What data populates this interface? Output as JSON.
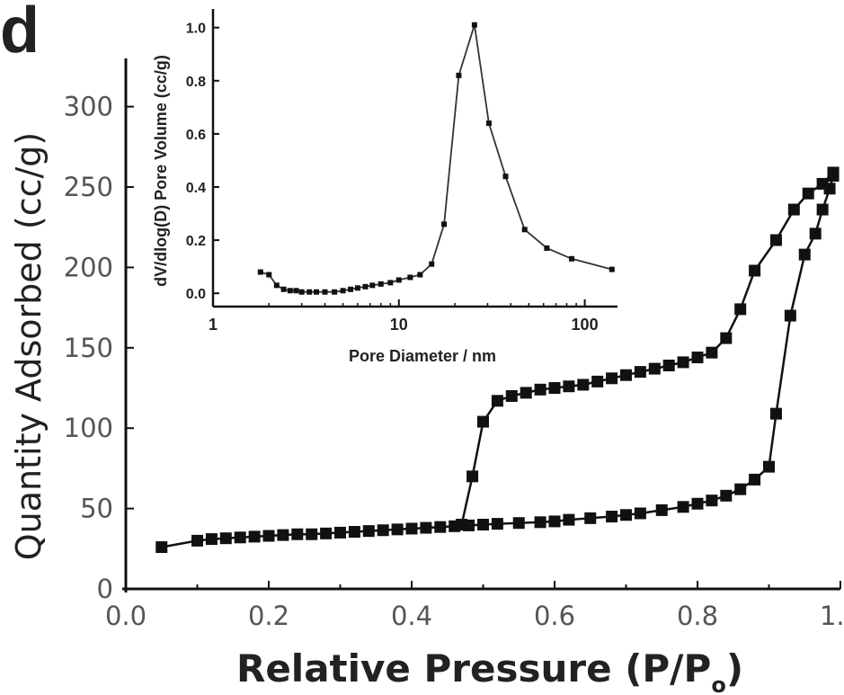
{
  "panel_label": "d",
  "chart_data": [
    {
      "type": "scatter",
      "title": "",
      "xlabel": "Relative Pressure (P/P",
      "xlabel_subscript": "o",
      "xlabel_end": ")",
      "ylabel": "Quantity Adsorbed (cc/g)",
      "xlim": [
        0,
        1.0
      ],
      "ylim": [
        0,
        330
      ],
      "xticks": [
        0.0,
        0.2,
        0.4,
        0.6,
        0.8,
        1.0
      ],
      "xtick_labels": [
        "0.0",
        "0.2",
        "0.4",
        "0.6",
        "0.8",
        "1.0"
      ],
      "yticks": [
        0,
        50,
        100,
        150,
        200,
        250,
        300
      ],
      "ytick_labels": [
        "0",
        "50",
        "100",
        "150",
        "200",
        "250",
        "300"
      ],
      "marker": "square",
      "color": "#111111",
      "series": [
        {
          "x": [
            0.05,
            0.1,
            0.12,
            0.14,
            0.16,
            0.18,
            0.2,
            0.22,
            0.24,
            0.26,
            0.28,
            0.3,
            0.32,
            0.34,
            0.36,
            0.38,
            0.4,
            0.42,
            0.44,
            0.46,
            0.48,
            0.5,
            0.52,
            0.55,
            0.58,
            0.6,
            0.62,
            0.65,
            0.68,
            0.7,
            0.72,
            0.75,
            0.78,
            0.8,
            0.82,
            0.84,
            0.86,
            0.88,
            0.9,
            0.91,
            0.93,
            0.95,
            0.965,
            0.975,
            0.985,
            0.99
          ],
          "y": [
            26,
            30,
            31,
            31.5,
            32,
            32.5,
            33,
            33.5,
            34,
            34,
            34.5,
            35,
            35.5,
            36,
            36.5,
            37,
            37.5,
            38,
            38.5,
            39,
            39.5,
            40,
            40.5,
            41,
            41.5,
            42,
            43,
            44,
            45,
            46,
            47,
            49,
            51,
            53,
            55,
            58,
            62,
            68,
            76,
            109,
            170,
            208,
            221,
            236,
            249,
            257
          ]
        },
        {
          "x": [
            0.99,
            0.975,
            0.955,
            0.935,
            0.91,
            0.88,
            0.86,
            0.84,
            0.82,
            0.8,
            0.78,
            0.76,
            0.74,
            0.72,
            0.7,
            0.68,
            0.66,
            0.64,
            0.62,
            0.6,
            0.58,
            0.56,
            0.54,
            0.52,
            0.5,
            0.485,
            0.47
          ],
          "y": [
            259,
            252,
            246,
            236,
            217,
            198,
            174,
            156,
            147,
            144,
            141,
            139,
            137,
            135,
            133,
            131,
            129,
            127,
            126,
            125,
            124,
            122,
            120,
            117,
            104,
            70,
            40
          ]
        }
      ]
    },
    {
      "type": "line",
      "title": "",
      "xlabel": "Pore Diameter / nm",
      "ylabel": "dV/dlog(D) Pore Volume (cc/g)",
      "xscale": "log",
      "xlim": [
        1,
        150
      ],
      "ylim": [
        -0.05,
        1.07
      ],
      "xticks": [
        1,
        10,
        100
      ],
      "xtick_labels": [
        "1",
        "10",
        "100"
      ],
      "yticks": [
        0.0,
        0.2,
        0.4,
        0.6,
        0.8,
        1.0
      ],
      "ytick_labels": [
        "0.0",
        "0.2",
        "0.4",
        "0.6",
        "0.8",
        "1.0"
      ],
      "marker": "square",
      "color": "#111111",
      "series": [
        {
          "x": [
            1.8,
            2.0,
            2.2,
            2.4,
            2.6,
            2.8,
            3.0,
            3.3,
            3.6,
            4.0,
            4.5,
            5.0,
            5.5,
            6.0,
            6.6,
            7.2,
            8.0,
            9.0,
            10.0,
            11.5,
            13.0,
            15.0,
            17.5,
            21.0,
            25.5,
            30.5,
            37.5,
            47.5,
            62.5,
            85.0,
            140.0
          ],
          "y": [
            0.08,
            0.07,
            0.03,
            0.015,
            0.01,
            0.01,
            0.005,
            0.005,
            0.005,
            0.005,
            0.005,
            0.01,
            0.015,
            0.02,
            0.025,
            0.03,
            0.035,
            0.04,
            0.05,
            0.06,
            0.07,
            0.11,
            0.26,
            0.82,
            1.01,
            0.64,
            0.44,
            0.24,
            0.17,
            0.13,
            0.09
          ]
        }
      ]
    }
  ]
}
